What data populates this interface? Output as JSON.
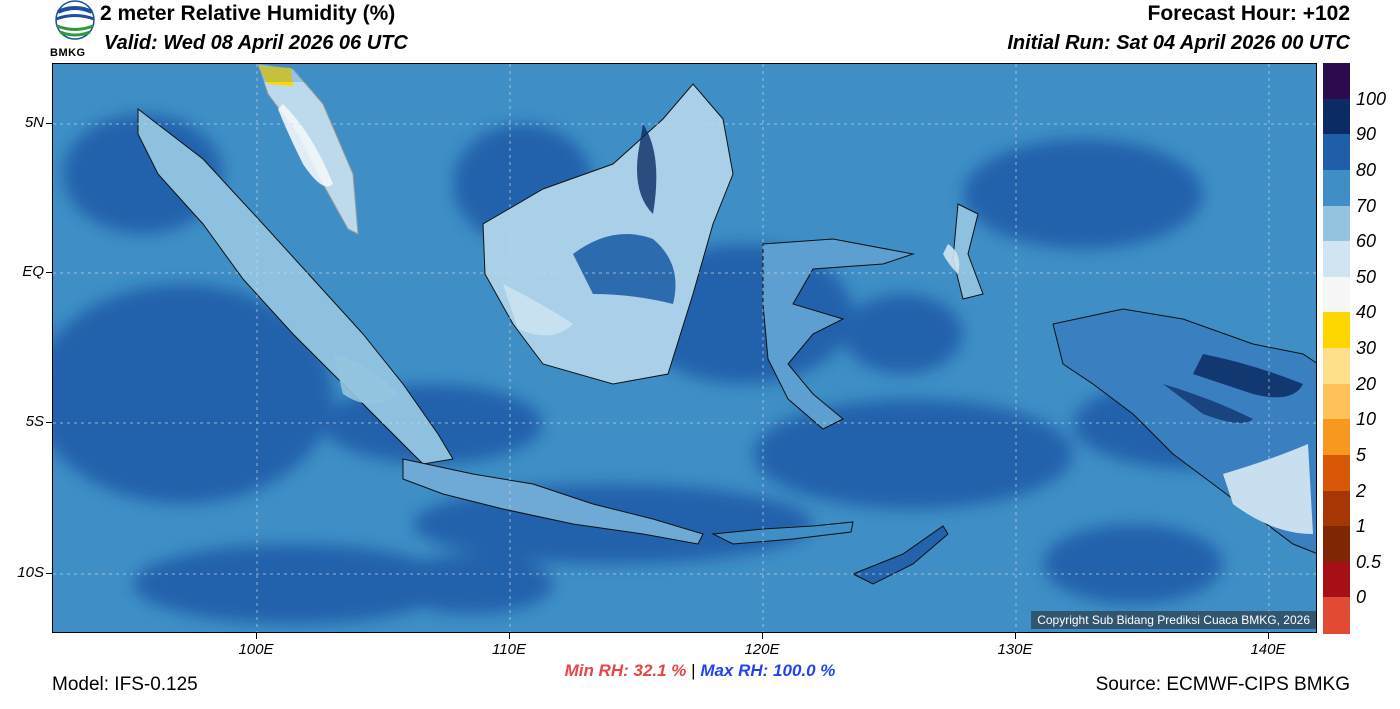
{
  "header": {
    "title": "2 meter Relative Humidity (%)",
    "valid": "Valid: Wed 08 April 2026 06 UTC",
    "forecast_hour": "Forecast Hour: +102",
    "initial_run": "Initial Run: Sat 04 April 2026 00 UTC",
    "logo_text": "BMKG"
  },
  "map": {
    "lat_labels": [
      "5N",
      "EQ",
      "5S",
      "10S"
    ],
    "lon_labels": [
      "100E",
      "110E",
      "120E",
      "130E",
      "140E"
    ],
    "copyright": "Copyright Sub Bidang Prediksi Cuaca BMKG, 2026",
    "ocean_color": "#3f8fc6",
    "humid_color": "#2462ac"
  },
  "colorbar": {
    "labels": [
      "100",
      "90",
      "80",
      "70",
      "60",
      "50",
      "40",
      "30",
      "20",
      "10",
      "5",
      "2",
      "1",
      "0.5",
      "0"
    ],
    "colors": [
      "#2c0a4c",
      "#0c2b64",
      "#1f5fa9",
      "#3f8fc6",
      "#94c4e0",
      "#d0e5f1",
      "#f7f7f7",
      "#ffd700",
      "#ffe08a",
      "#fdc25a",
      "#f9981f",
      "#d95807",
      "#a63603",
      "#7f2704",
      "#a50f15",
      "#e34a33"
    ]
  },
  "footer": {
    "min_rh": "Min RH:  32.1 %",
    "separator": "|",
    "max_rh": "Max RH: 100.0 %",
    "model": "Model: IFS-0.125",
    "source": "Source: ECMWF-CIPS BMKG"
  }
}
